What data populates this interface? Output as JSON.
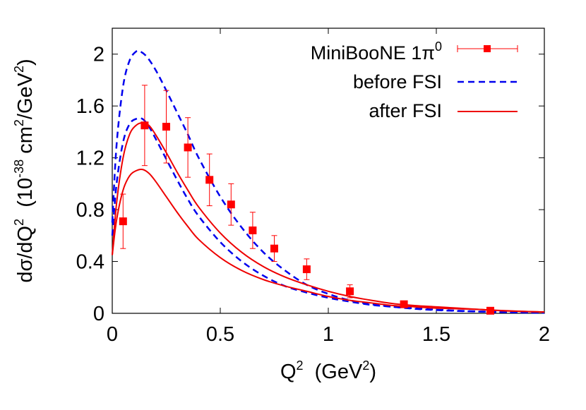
{
  "chart_data": {
    "type": "line",
    "xlabel": {
      "base": "Q",
      "sup": "2",
      "rest": "  (GeV",
      "sup2": "2",
      "end": ")"
    },
    "ylabel": {
      "a": "dσ/dQ",
      "a_sup": "2",
      "b": "  (10",
      "b_sup": "-38",
      "c": " cm",
      "c_sup": "2",
      "d": "/GeV",
      "d_sup": "2",
      "e": ")"
    },
    "xlim": [
      0,
      2
    ],
    "ylim": [
      0,
      2.2
    ],
    "x_ticks": [
      {
        "value": 0,
        "label": "0"
      },
      {
        "value": 0.5,
        "label": "0.5"
      },
      {
        "value": 1,
        "label": "1"
      },
      {
        "value": 1.5,
        "label": "1.5"
      },
      {
        "value": 2,
        "label": "2"
      }
    ],
    "y_ticks": [
      {
        "value": 0,
        "label": "0"
      },
      {
        "value": 0.4,
        "label": "0.4"
      },
      {
        "value": 0.8,
        "label": "0.8"
      },
      {
        "value": 1.2,
        "label": "1.2"
      },
      {
        "value": 1.6,
        "label": "1.6"
      },
      {
        "value": 2.0,
        "label": "2"
      }
    ],
    "grid": false,
    "legend_position": "top-right",
    "legend": [
      {
        "key": "data",
        "label": "MiniBooNE 1π",
        "label_sup": "0",
        "style": "points"
      },
      {
        "key": "before",
        "label": "before FSI",
        "style": "dashed"
      },
      {
        "key": "after",
        "label": "after FSI",
        "style": "solid"
      }
    ],
    "colors": {
      "data": "#ff0000",
      "before": "#0000ee",
      "after": "#ee0000"
    },
    "points": [
      {
        "x": 0.05,
        "y": 0.71,
        "err": 0.21
      },
      {
        "x": 0.15,
        "y": 1.45,
        "err": 0.31
      },
      {
        "x": 0.25,
        "y": 1.44,
        "err": 0.28
      },
      {
        "x": 0.35,
        "y": 1.28,
        "err": 0.23
      },
      {
        "x": 0.45,
        "y": 1.03,
        "err": 0.2
      },
      {
        "x": 0.55,
        "y": 0.84,
        "err": 0.16
      },
      {
        "x": 0.65,
        "y": 0.64,
        "err": 0.14
      },
      {
        "x": 0.75,
        "y": 0.5,
        "err": 0.1
      },
      {
        "x": 0.9,
        "y": 0.34,
        "err": 0.08
      },
      {
        "x": 1.1,
        "y": 0.17,
        "err": 0.05
      },
      {
        "x": 1.35,
        "y": 0.07,
        "err": 0.02
      },
      {
        "x": 1.75,
        "y": 0.02,
        "err": 0.01
      }
    ],
    "series": [
      {
        "key": "before-upper",
        "style": "dashed",
        "x": [
          0,
          0.02,
          0.05,
          0.08,
          0.11,
          0.13,
          0.16,
          0.2,
          0.25,
          0.3,
          0.35,
          0.4,
          0.5,
          0.6,
          0.7,
          0.8,
          0.9,
          1.0,
          1.1,
          1.2,
          1.3,
          1.4,
          1.5,
          1.6,
          1.7,
          1.8,
          1.9,
          2.0
        ],
        "y": [
          0.7,
          1.3,
          1.75,
          1.95,
          2.02,
          2.02,
          1.98,
          1.88,
          1.72,
          1.55,
          1.38,
          1.2,
          0.9,
          0.66,
          0.47,
          0.33,
          0.22,
          0.15,
          0.1,
          0.07,
          0.05,
          0.035,
          0.025,
          0.018,
          0.013,
          0.009,
          0.006,
          0.004
        ]
      },
      {
        "key": "before-lower",
        "style": "dashed",
        "x": [
          0,
          0.02,
          0.05,
          0.08,
          0.11,
          0.14,
          0.17,
          0.2,
          0.25,
          0.3,
          0.35,
          0.4,
          0.5,
          0.6,
          0.7,
          0.8,
          0.9,
          1.0,
          1.1,
          1.2,
          1.3,
          1.4,
          1.5,
          1.6,
          1.7,
          1.8,
          1.9,
          2.0
        ],
        "y": [
          0.6,
          1.0,
          1.32,
          1.46,
          1.5,
          1.5,
          1.44,
          1.35,
          1.19,
          1.03,
          0.88,
          0.75,
          0.55,
          0.4,
          0.29,
          0.21,
          0.16,
          0.12,
          0.09,
          0.065,
          0.05,
          0.038,
          0.028,
          0.02,
          0.014,
          0.01,
          0.007,
          0.005
        ]
      },
      {
        "key": "after-upper",
        "style": "solid",
        "x": [
          0,
          0.02,
          0.05,
          0.08,
          0.11,
          0.14,
          0.17,
          0.2,
          0.25,
          0.3,
          0.35,
          0.4,
          0.5,
          0.6,
          0.7,
          0.8,
          0.9,
          1.0,
          1.1,
          1.2,
          1.3,
          1.4,
          1.5,
          1.6,
          1.7,
          1.8,
          1.9,
          2.0
        ],
        "y": [
          0.45,
          0.85,
          1.2,
          1.38,
          1.45,
          1.47,
          1.45,
          1.38,
          1.24,
          1.09,
          0.95,
          0.82,
          0.62,
          0.47,
          0.36,
          0.28,
          0.22,
          0.17,
          0.13,
          0.1,
          0.075,
          0.06,
          0.05,
          0.04,
          0.03,
          0.022,
          0.015,
          0.01
        ]
      },
      {
        "key": "after-lower",
        "style": "solid",
        "x": [
          0,
          0.02,
          0.05,
          0.08,
          0.11,
          0.14,
          0.17,
          0.2,
          0.25,
          0.3,
          0.35,
          0.4,
          0.5,
          0.6,
          0.7,
          0.8,
          0.9,
          1.0,
          1.1,
          1.2,
          1.3,
          1.4,
          1.5,
          1.6,
          1.7,
          1.8,
          1.9,
          2.0
        ],
        "y": [
          0.45,
          0.72,
          0.95,
          1.06,
          1.1,
          1.11,
          1.08,
          1.02,
          0.9,
          0.78,
          0.67,
          0.57,
          0.43,
          0.33,
          0.26,
          0.21,
          0.17,
          0.13,
          0.1,
          0.08,
          0.06,
          0.05,
          0.04,
          0.035,
          0.03,
          0.02,
          0.015,
          0.01
        ]
      }
    ]
  }
}
